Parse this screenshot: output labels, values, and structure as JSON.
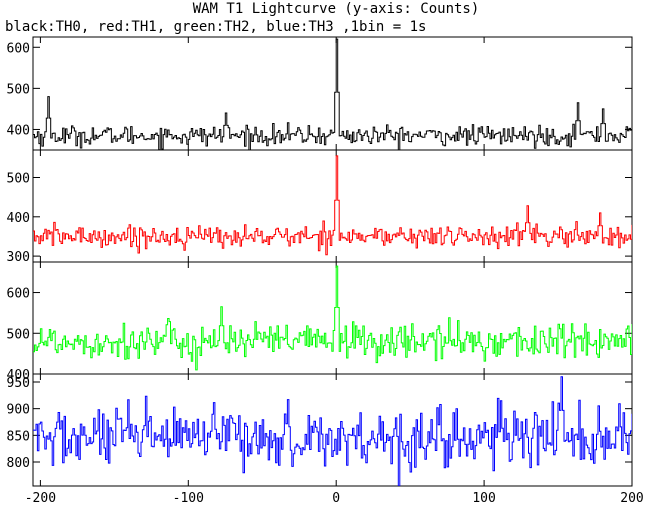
{
  "title": "WAM T1 Lightcurve (y-axis: Counts)",
  "subtitle": "black:TH0, red:TH1, green:TH2, blue:TH3 ,1bin = 1s",
  "chart_data": {
    "type": "line",
    "title": "WAM T1 Lightcurve (y-axis: Counts)",
    "subtitle": "black:TH0, red:TH1, green:TH2, blue:TH3 ,1bin = 1s",
    "xlabel": "",
    "ylabel": "Counts",
    "xlim": [
      -205,
      200
    ],
    "xticks": [
      -200,
      -100,
      0,
      100,
      200
    ],
    "bin_seconds": 1,
    "grid": false,
    "legend": "none",
    "panels": [
      {
        "name": "TH0",
        "color": "#000000",
        "ylim": [
          350,
          625
        ],
        "yticks": [
          400,
          500,
          600
        ],
        "baseline": 385,
        "noise": 12,
        "events": [
          {
            "x": -195,
            "y": 480
          },
          {
            "x": -75,
            "y": 440
          },
          {
            "x": 0,
            "y": 620
          },
          {
            "x": 163,
            "y": 465
          },
          {
            "x": 180,
            "y": 450
          }
        ]
      },
      {
        "name": "TH1",
        "color": "#ff0000",
        "ylim": [
          285,
          570
        ],
        "yticks": [
          300,
          400,
          500
        ],
        "baseline": 350,
        "noise": 14,
        "events": [
          {
            "x": 0,
            "y": 555
          },
          {
            "x": 129,
            "y": 428
          },
          {
            "x": 178,
            "y": 410
          }
        ]
      },
      {
        "name": "TH2",
        "color": "#00ff00",
        "ylim": [
          400,
          675
        ],
        "yticks": [
          400,
          500,
          600
        ],
        "baseline": 480,
        "noise": 22,
        "events": [
          {
            "x": 0,
            "y": 665
          },
          {
            "x": -95,
            "y": 410
          },
          {
            "x": -78,
            "y": 565
          }
        ]
      },
      {
        "name": "TH3",
        "color": "#0000ff",
        "ylim": [
          755,
          965
        ],
        "yticks": [
          800,
          850,
          900,
          950
        ],
        "baseline": 845,
        "noise": 28,
        "events": [
          {
            "x": 152,
            "y": 960
          }
        ]
      }
    ]
  }
}
